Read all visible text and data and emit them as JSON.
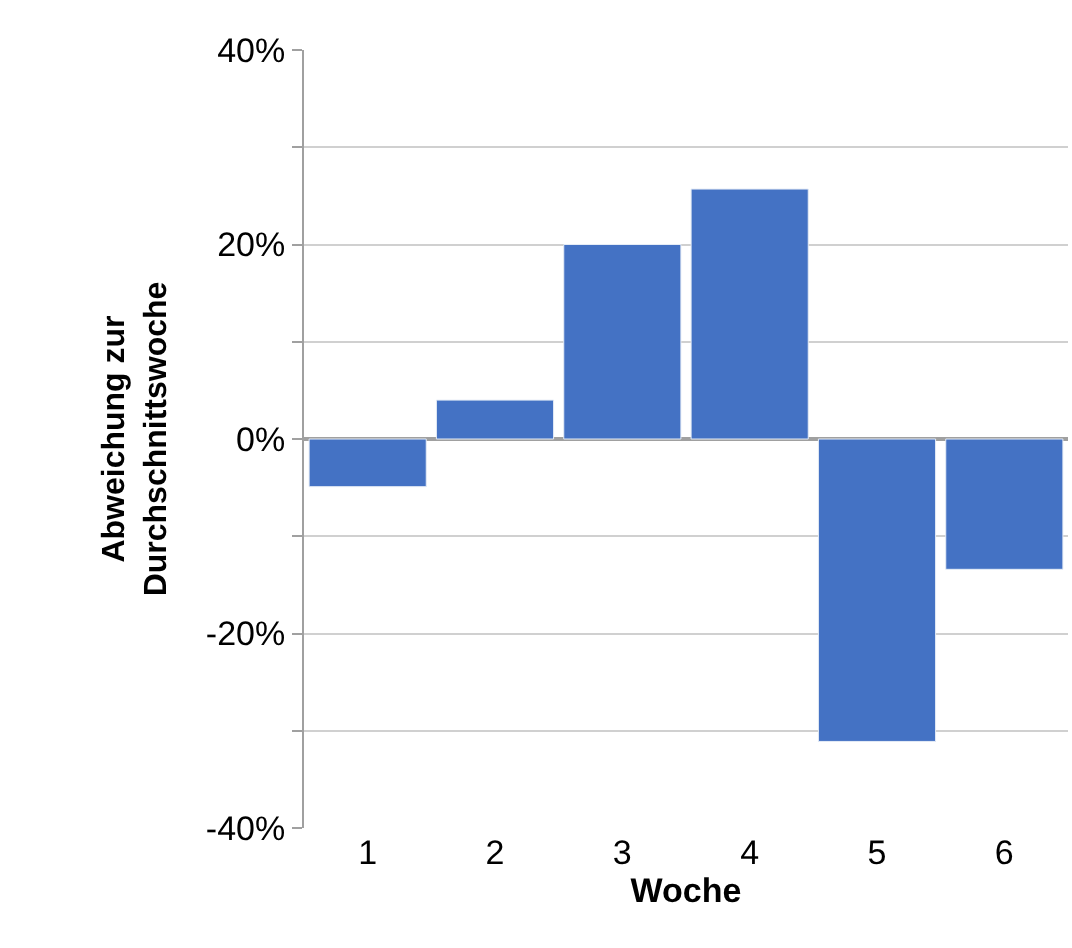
{
  "chart_data": {
    "type": "bar",
    "xlabel": "Woche",
    "ylabel": "Abweichung zur Durchschnittswoche",
    "categories": [
      "1",
      "2",
      "3",
      "4",
      "5",
      "6"
    ],
    "series": [
      {
        "color": "#4472c4",
        "values": [
          -4.9,
          4.0,
          20.0,
          25.7,
          -31.1,
          -13.4
        ]
      }
    ],
    "ylim": [
      -40,
      40
    ],
    "yticks": [
      {
        "value": -40,
        "label": "-40%"
      },
      {
        "value": -30,
        "label": null
      },
      {
        "value": -20,
        "label": "-20%"
      },
      {
        "value": -10,
        "label": null
      },
      {
        "value": 0,
        "label": "0%"
      },
      {
        "value": 10,
        "label": null
      },
      {
        "value": 20,
        "label": "20%"
      },
      {
        "value": 30,
        "label": null
      },
      {
        "value": 40,
        "label": "40%"
      }
    ],
    "grid": "y"
  }
}
